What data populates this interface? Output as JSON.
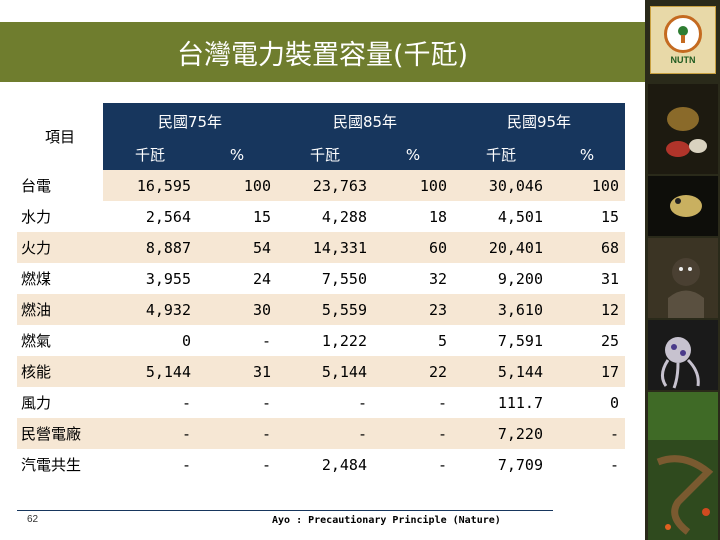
{
  "slide": {
    "title": "台灣電力裝置容量(千瓩)",
    "page_number": "62",
    "footer": "Ayo : Precautionary Principle (Nature)",
    "logo_text": "NUTN"
  },
  "table": {
    "item_header": "項目",
    "year_headers": [
      "民國75年",
      "民國85年",
      "民國95年"
    ],
    "sub_headers": [
      "千瓩",
      "%",
      "千瓩",
      "%",
      "千瓩",
      "%"
    ],
    "rows": [
      {
        "label": "台電",
        "values": [
          "16,595",
          "100",
          "23,763",
          "100",
          "30,046",
          "100"
        ]
      },
      {
        "label": "水力",
        "values": [
          "2,564",
          "15",
          "4,288",
          "18",
          "4,501",
          "15"
        ]
      },
      {
        "label": "火力",
        "values": [
          "8,887",
          "54",
          "14,331",
          "60",
          "20,401",
          "68"
        ]
      },
      {
        "label": "燃煤",
        "values": [
          "3,955",
          "24",
          "7,550",
          "32",
          "9,200",
          "31"
        ]
      },
      {
        "label": "燃油",
        "values": [
          "4,932",
          "30",
          "5,559",
          "23",
          "3,610",
          "12"
        ]
      },
      {
        "label": "燃氣",
        "values": [
          "0",
          "-",
          "1,222",
          "5",
          "7,591",
          "25"
        ]
      },
      {
        "label": "核能",
        "values": [
          "5,144",
          "31",
          "5,144",
          "22",
          "5,144",
          "17"
        ]
      },
      {
        "label": "風力",
        "values": [
          "-",
          "-",
          "-",
          "-",
          "111.7",
          "0"
        ]
      },
      {
        "label": "民營電廠",
        "values": [
          "-",
          "-",
          "-",
          "-",
          "7,220",
          "-"
        ]
      },
      {
        "label": "汽電共生",
        "values": [
          "-",
          "-",
          "2,484",
          "-",
          "7,709",
          "-"
        ]
      }
    ]
  },
  "colors": {
    "title_bar": "#6f7d2e",
    "header_bg": "#17365d",
    "row_alt": "#f6e7d4"
  },
  "sidebar_images": [
    "insects-photo",
    "frog-photo",
    "frog-photo",
    "monkey-photo",
    "octopus-photo",
    "forest-photo",
    "lizard-photo",
    "butterfly-photo"
  ]
}
